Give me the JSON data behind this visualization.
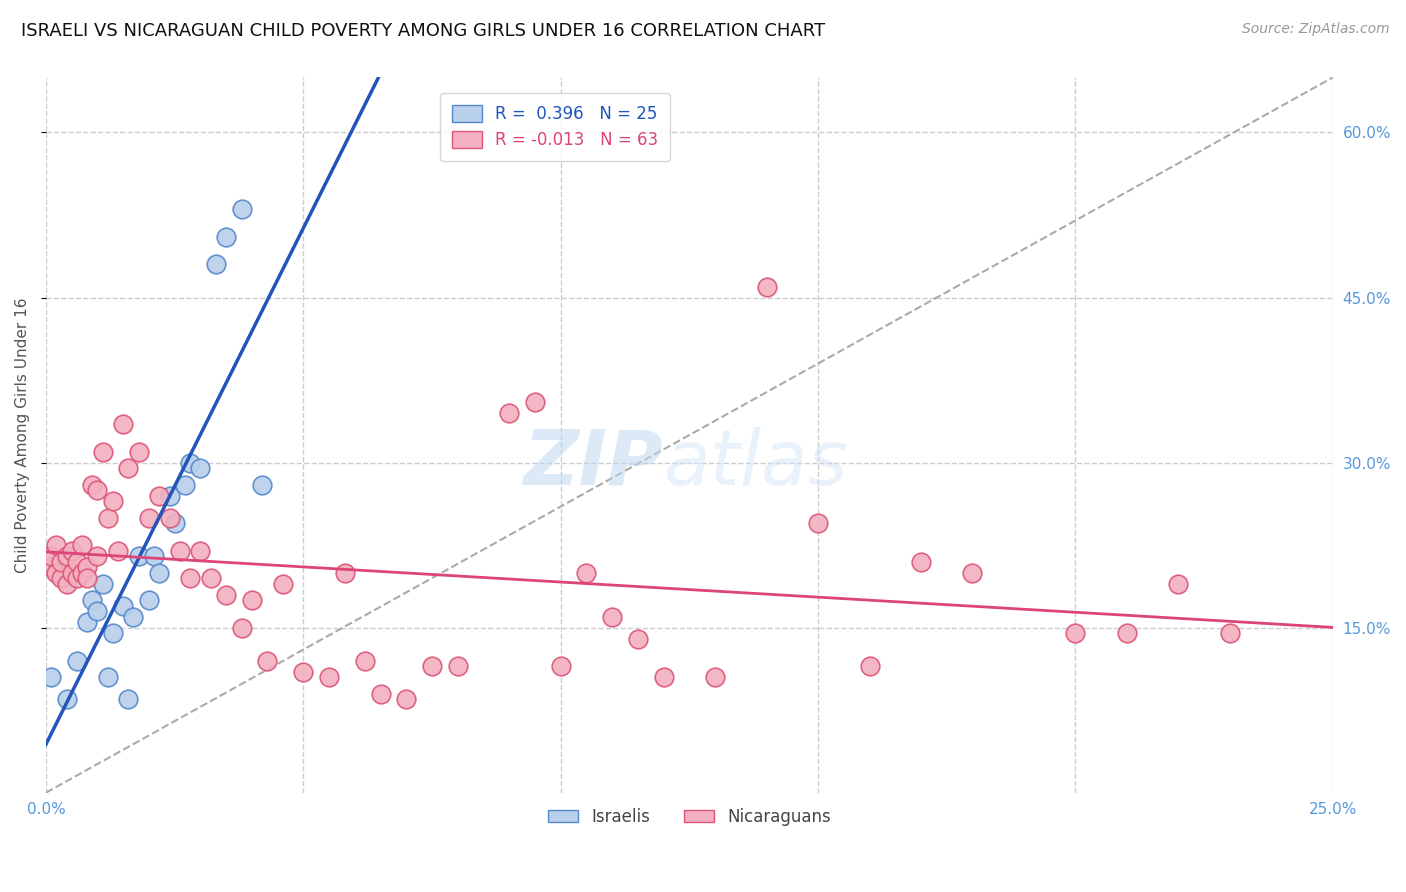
{
  "title": "ISRAELI VS NICARAGUAN CHILD POVERTY AMONG GIRLS UNDER 16 CORRELATION CHART",
  "source": "Source: ZipAtlas.com",
  "ylabel": "Child Poverty Among Girls Under 16",
  "xlim": [
    0.0,
    0.25
  ],
  "ylim": [
    0.0,
    0.65
  ],
  "x_ticks": [
    0.0,
    0.05,
    0.1,
    0.15,
    0.2,
    0.25
  ],
  "x_tick_labels": [
    "0.0%",
    "",
    "",
    "",
    "",
    "25.0%"
  ],
  "y_ticks": [
    0.15,
    0.3,
    0.45,
    0.6
  ],
  "y_tick_labels": [
    "15.0%",
    "30.0%",
    "45.0%",
    "60.0%"
  ],
  "israeli_color": "#b8d0ea",
  "nicaraguan_color": "#f2b0c0",
  "israeli_edge": "#5588cc",
  "nicaraguan_edge": "#dd5577",
  "trend_israeli_color": "#2255bb",
  "trend_nicaraguan_color": "#dd4477",
  "legend_r_israeli": "R =  0.396   N = 25",
  "legend_r_nicaraguan": "R = -0.013   N = 63",
  "israeli_x": [
    0.001,
    0.004,
    0.006,
    0.008,
    0.009,
    0.01,
    0.011,
    0.012,
    0.013,
    0.015,
    0.016,
    0.017,
    0.018,
    0.02,
    0.021,
    0.022,
    0.024,
    0.025,
    0.027,
    0.028,
    0.03,
    0.033,
    0.035,
    0.038,
    0.042
  ],
  "israeli_y": [
    0.105,
    0.085,
    0.12,
    0.155,
    0.175,
    0.165,
    0.19,
    0.105,
    0.145,
    0.17,
    0.085,
    0.16,
    0.215,
    0.175,
    0.215,
    0.2,
    0.27,
    0.245,
    0.28,
    0.3,
    0.295,
    0.48,
    0.505,
    0.53,
    0.28
  ],
  "nicaraguan_x": [
    0.001,
    0.001,
    0.002,
    0.002,
    0.003,
    0.003,
    0.004,
    0.004,
    0.005,
    0.005,
    0.006,
    0.006,
    0.007,
    0.007,
    0.008,
    0.008,
    0.009,
    0.01,
    0.01,
    0.011,
    0.012,
    0.013,
    0.014,
    0.015,
    0.016,
    0.018,
    0.02,
    0.022,
    0.024,
    0.026,
    0.028,
    0.03,
    0.032,
    0.035,
    0.038,
    0.04,
    0.043,
    0.046,
    0.05,
    0.055,
    0.058,
    0.062,
    0.065,
    0.07,
    0.075,
    0.08,
    0.09,
    0.095,
    0.1,
    0.105,
    0.11,
    0.115,
    0.12,
    0.13,
    0.14,
    0.15,
    0.16,
    0.17,
    0.18,
    0.2,
    0.21,
    0.22,
    0.23
  ],
  "nicaraguan_y": [
    0.205,
    0.215,
    0.2,
    0.225,
    0.195,
    0.21,
    0.19,
    0.215,
    0.2,
    0.22,
    0.195,
    0.21,
    0.2,
    0.225,
    0.205,
    0.195,
    0.28,
    0.275,
    0.215,
    0.31,
    0.25,
    0.265,
    0.22,
    0.335,
    0.295,
    0.31,
    0.25,
    0.27,
    0.25,
    0.22,
    0.195,
    0.22,
    0.195,
    0.18,
    0.15,
    0.175,
    0.12,
    0.19,
    0.11,
    0.105,
    0.2,
    0.12,
    0.09,
    0.085,
    0.115,
    0.115,
    0.345,
    0.355,
    0.115,
    0.2,
    0.16,
    0.14,
    0.105,
    0.105,
    0.46,
    0.245,
    0.115,
    0.21,
    0.2,
    0.145,
    0.145,
    0.19,
    0.145
  ],
  "watermark_zip": "ZIP",
  "watermark_atlas": "atlas",
  "background_color": "#ffffff",
  "grid_color": "#cccccc",
  "title_fontsize": 13,
  "axis_label_fontsize": 11,
  "tick_fontsize": 11,
  "source_fontsize": 10,
  "marker_size": 180
}
